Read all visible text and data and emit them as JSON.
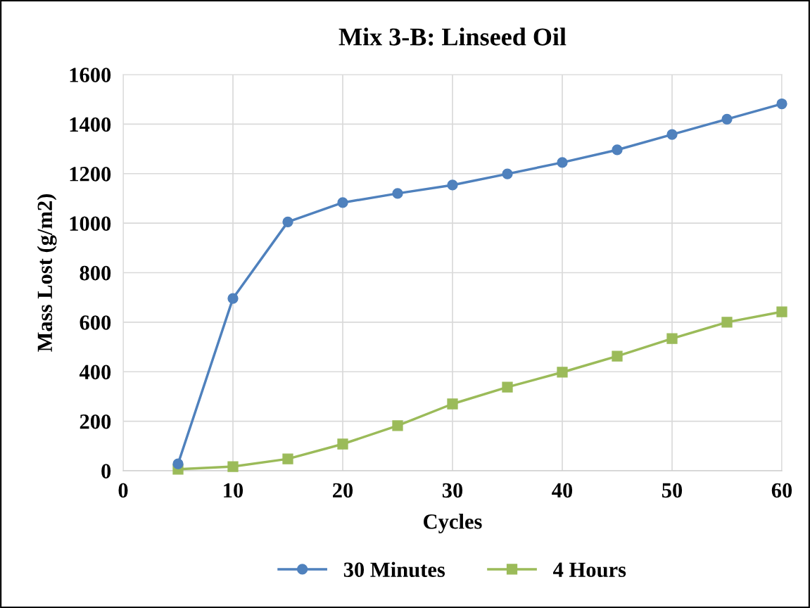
{
  "chart_data": {
    "type": "line",
    "title": "Mix 3-B: Linseed Oil",
    "xlabel": "Cycles",
    "ylabel": "Mass Lost (g/m2)",
    "x": [
      5,
      10,
      15,
      20,
      25,
      30,
      35,
      40,
      45,
      50,
      55,
      60
    ],
    "series": [
      {
        "name": "30 Minutes",
        "color": "#4f81bd",
        "marker": "circle",
        "values": [
          28,
          696,
          1005,
          1083,
          1120,
          1154,
          1199,
          1245,
          1296,
          1358,
          1420,
          1482
        ]
      },
      {
        "name": "4 Hours",
        "color": "#9bbb59",
        "marker": "square",
        "values": [
          6,
          17,
          48,
          108,
          182,
          270,
          338,
          398,
          463,
          534,
          600,
          642
        ]
      }
    ],
    "xlim": [
      0,
      60
    ],
    "xticks": [
      0,
      10,
      20,
      30,
      40,
      50,
      60
    ],
    "ylim": [
      0,
      1600
    ],
    "yticks": [
      0,
      200,
      400,
      600,
      800,
      1000,
      1200,
      1400,
      1600
    ],
    "grid": true,
    "legend": "bottom",
    "line_style": "solid"
  }
}
